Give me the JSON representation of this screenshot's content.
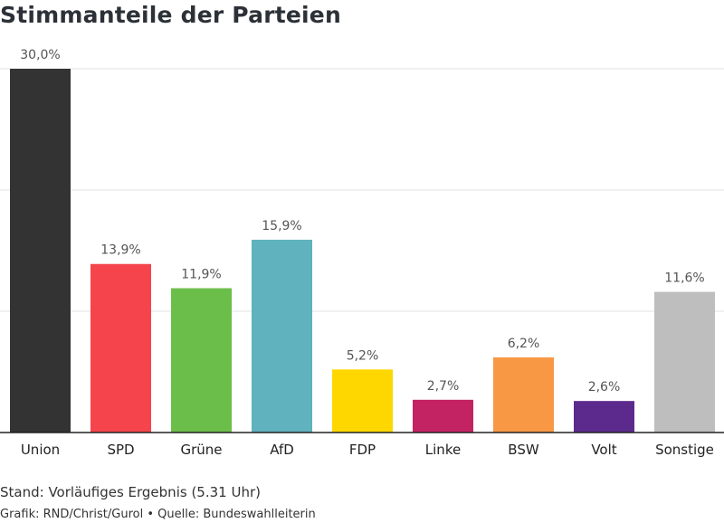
{
  "chart_data": {
    "type": "bar",
    "title": "Stimmanteile der Parteien",
    "categories": [
      "Union",
      "SPD",
      "Grüne",
      "AfD",
      "FDP",
      "Linke",
      "BSW",
      "Volt",
      "Sonstige"
    ],
    "values": [
      30.0,
      13.9,
      11.9,
      15.9,
      5.2,
      2.7,
      6.2,
      2.6,
      11.6
    ],
    "value_labels": [
      "30,0%",
      "13,9%",
      "11,9%",
      "15,9%",
      "5,2%",
      "2,7%",
      "6,2%",
      "2,6%",
      "11,6%"
    ],
    "colors": [
      "#333333",
      "#f5444b",
      "#6cbe4a",
      "#60b2be",
      "#fed700",
      "#c42363",
      "#f89845",
      "#5c2a8c",
      "#bebebe"
    ],
    "ylim": [
      0,
      30
    ],
    "grid": true,
    "xlabel": "",
    "ylabel": ""
  },
  "footer": {
    "stand": "Stand: Vorläufiges Ergebnis (5.31 Uhr)",
    "credit": "Grafik: RND/Christ/Gurol • Quelle: Bundeswahlleiterin"
  }
}
